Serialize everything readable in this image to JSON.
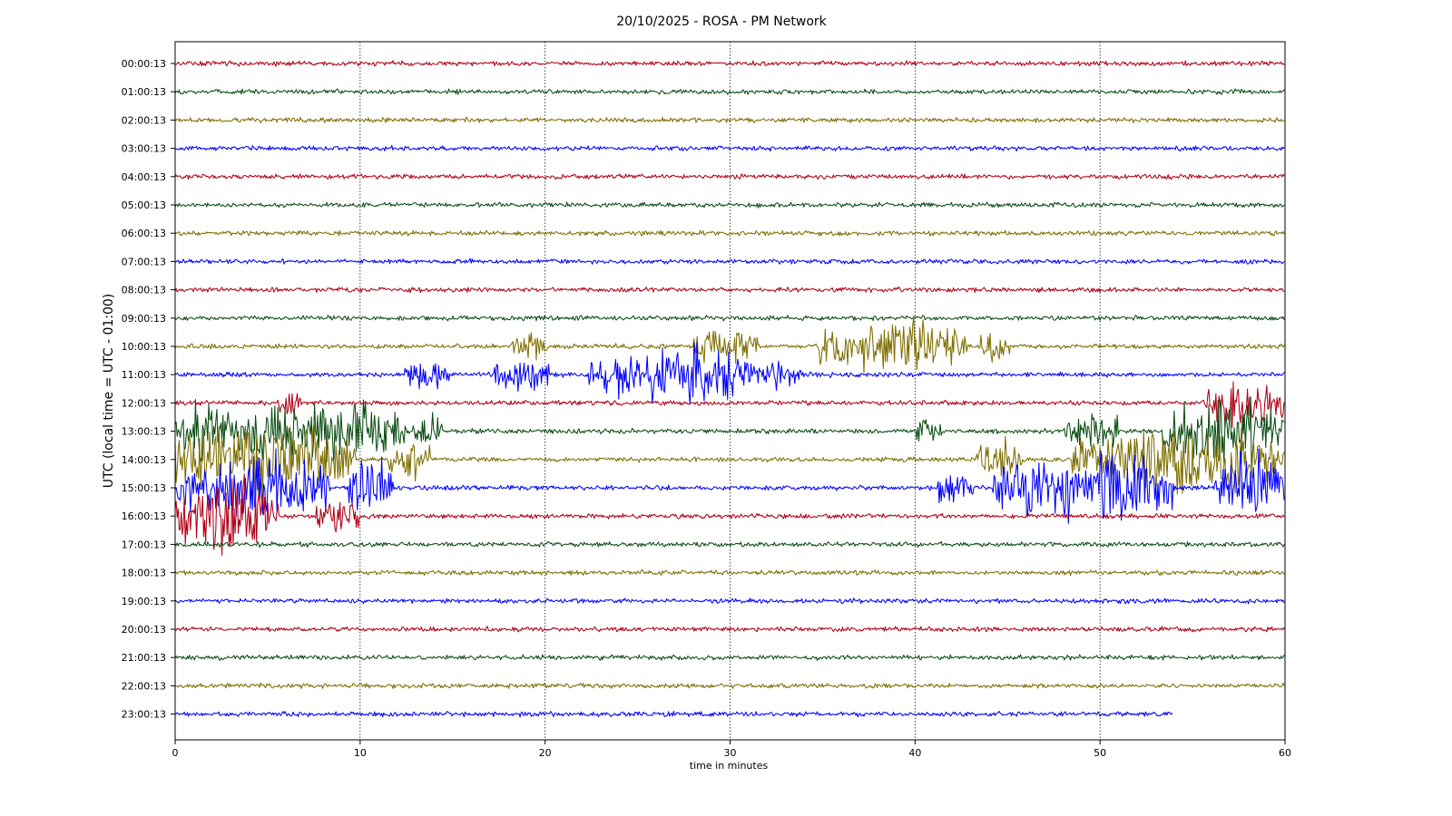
{
  "chart_data": {
    "type": "line",
    "title": "20/10/2025 - ROSA - PM Network",
    "xlabel": "time in minutes",
    "ylabel": "UTC (local time = UTC - 01:00)",
    "xlim": [
      0,
      60
    ],
    "x_ticks": [
      "0",
      "10",
      "20",
      "30",
      "40",
      "50",
      "60"
    ],
    "grid": "vertical dotted lines at major x ticks",
    "colors": [
      "#b00016",
      "#0b4d13",
      "#7f6e00",
      "#0000ff"
    ],
    "rows": [
      {
        "label": "00:00:13",
        "color": "#b00016",
        "end": 60,
        "bursts": []
      },
      {
        "label": "01:00:13",
        "color": "#0b4d13",
        "end": 60,
        "bursts": []
      },
      {
        "label": "02:00:13",
        "color": "#7f6e00",
        "end": 60,
        "bursts": []
      },
      {
        "label": "03:00:13",
        "color": "#0000ff",
        "end": 60,
        "bursts": []
      },
      {
        "label": "04:00:13",
        "color": "#b00016",
        "end": 60,
        "bursts": []
      },
      {
        "label": "05:00:13",
        "color": "#0b4d13",
        "end": 60,
        "bursts": []
      },
      {
        "label": "06:00:13",
        "color": "#7f6e00",
        "end": 60,
        "bursts": []
      },
      {
        "label": "07:00:13",
        "color": "#0000ff",
        "end": 60,
        "bursts": []
      },
      {
        "label": "08:00:13",
        "color": "#b00016",
        "end": 60,
        "bursts": []
      },
      {
        "label": "09:00:13",
        "color": "#0b4d13",
        "end": 60,
        "bursts": []
      },
      {
        "label": "10:00:13",
        "color": "#7f6e00",
        "end": 60,
        "bursts": [
          {
            "start": 18.2,
            "end": 20.1,
            "amp": 0.18
          },
          {
            "start": 28.0,
            "end": 31.5,
            "amp": 0.22
          },
          {
            "start": 34.8,
            "end": 42.8,
            "amp": 0.35
          },
          {
            "start": 43.5,
            "end": 45.2,
            "amp": 0.18
          }
        ]
      },
      {
        "label": "11:00:13",
        "color": "#0000ff",
        "end": 60,
        "bursts": [
          {
            "start": 12.4,
            "end": 14.8,
            "amp": 0.18
          },
          {
            "start": 17.2,
            "end": 20.2,
            "amp": 0.25
          },
          {
            "start": 22.3,
            "end": 31.3,
            "amp": 0.42
          },
          {
            "start": 31.4,
            "end": 34.0,
            "amp": 0.16
          }
        ]
      },
      {
        "label": "12:00:13",
        "color": "#b00016",
        "end": 60,
        "bursts": [
          {
            "start": 5.5,
            "end": 6.8,
            "amp": 0.15
          },
          {
            "start": 55.5,
            "end": 60.0,
            "amp": 0.3
          }
        ]
      },
      {
        "label": "13:00:13",
        "color": "#0b4d13",
        "end": 60,
        "bursts": [
          {
            "start": 0.0,
            "end": 3.2,
            "amp": 0.38
          },
          {
            "start": 3.3,
            "end": 12.2,
            "amp": 0.45
          },
          {
            "start": 12.3,
            "end": 14.5,
            "amp": 0.22
          },
          {
            "start": 40.0,
            "end": 41.5,
            "amp": 0.16
          },
          {
            "start": 48.0,
            "end": 51.0,
            "amp": 0.28
          },
          {
            "start": 53.3,
            "end": 60.0,
            "amp": 0.5
          }
        ]
      },
      {
        "label": "14:00:13",
        "color": "#7f6e00",
        "end": 60,
        "bursts": [
          {
            "start": 0.0,
            "end": 9.8,
            "amp": 0.5
          },
          {
            "start": 11.5,
            "end": 13.8,
            "amp": 0.28
          },
          {
            "start": 43.3,
            "end": 45.8,
            "amp": 0.28
          },
          {
            "start": 48.5,
            "end": 60.0,
            "amp": 0.42
          }
        ]
      },
      {
        "label": "15:00:13",
        "color": "#0000ff",
        "end": 60,
        "bursts": [
          {
            "start": 0.0,
            "end": 8.4,
            "amp": 0.45
          },
          {
            "start": 9.4,
            "end": 11.8,
            "amp": 0.38
          },
          {
            "start": 41.2,
            "end": 43.2,
            "amp": 0.25
          },
          {
            "start": 44.2,
            "end": 54.0,
            "amp": 0.5
          },
          {
            "start": 56.2,
            "end": 60.0,
            "amp": 0.5
          }
        ]
      },
      {
        "label": "16:00:13",
        "color": "#b00016",
        "end": 60,
        "bursts": [
          {
            "start": 0.0,
            "end": 5.6,
            "amp": 0.55
          },
          {
            "start": 7.6,
            "end": 10.0,
            "amp": 0.22
          }
        ]
      },
      {
        "label": "17:00:13",
        "color": "#0b4d13",
        "end": 60,
        "bursts": []
      },
      {
        "label": "18:00:13",
        "color": "#7f6e00",
        "end": 60,
        "bursts": []
      },
      {
        "label": "19:00:13",
        "color": "#0000ff",
        "end": 60,
        "bursts": []
      },
      {
        "label": "20:00:13",
        "color": "#b00016",
        "end": 60,
        "bursts": []
      },
      {
        "label": "21:00:13",
        "color": "#0b4d13",
        "end": 60,
        "bursts": []
      },
      {
        "label": "22:00:13",
        "color": "#7f6e00",
        "end": 60,
        "bursts": []
      },
      {
        "label": "23:00:13",
        "color": "#0000ff",
        "end": 53.9,
        "bursts": []
      }
    ]
  }
}
